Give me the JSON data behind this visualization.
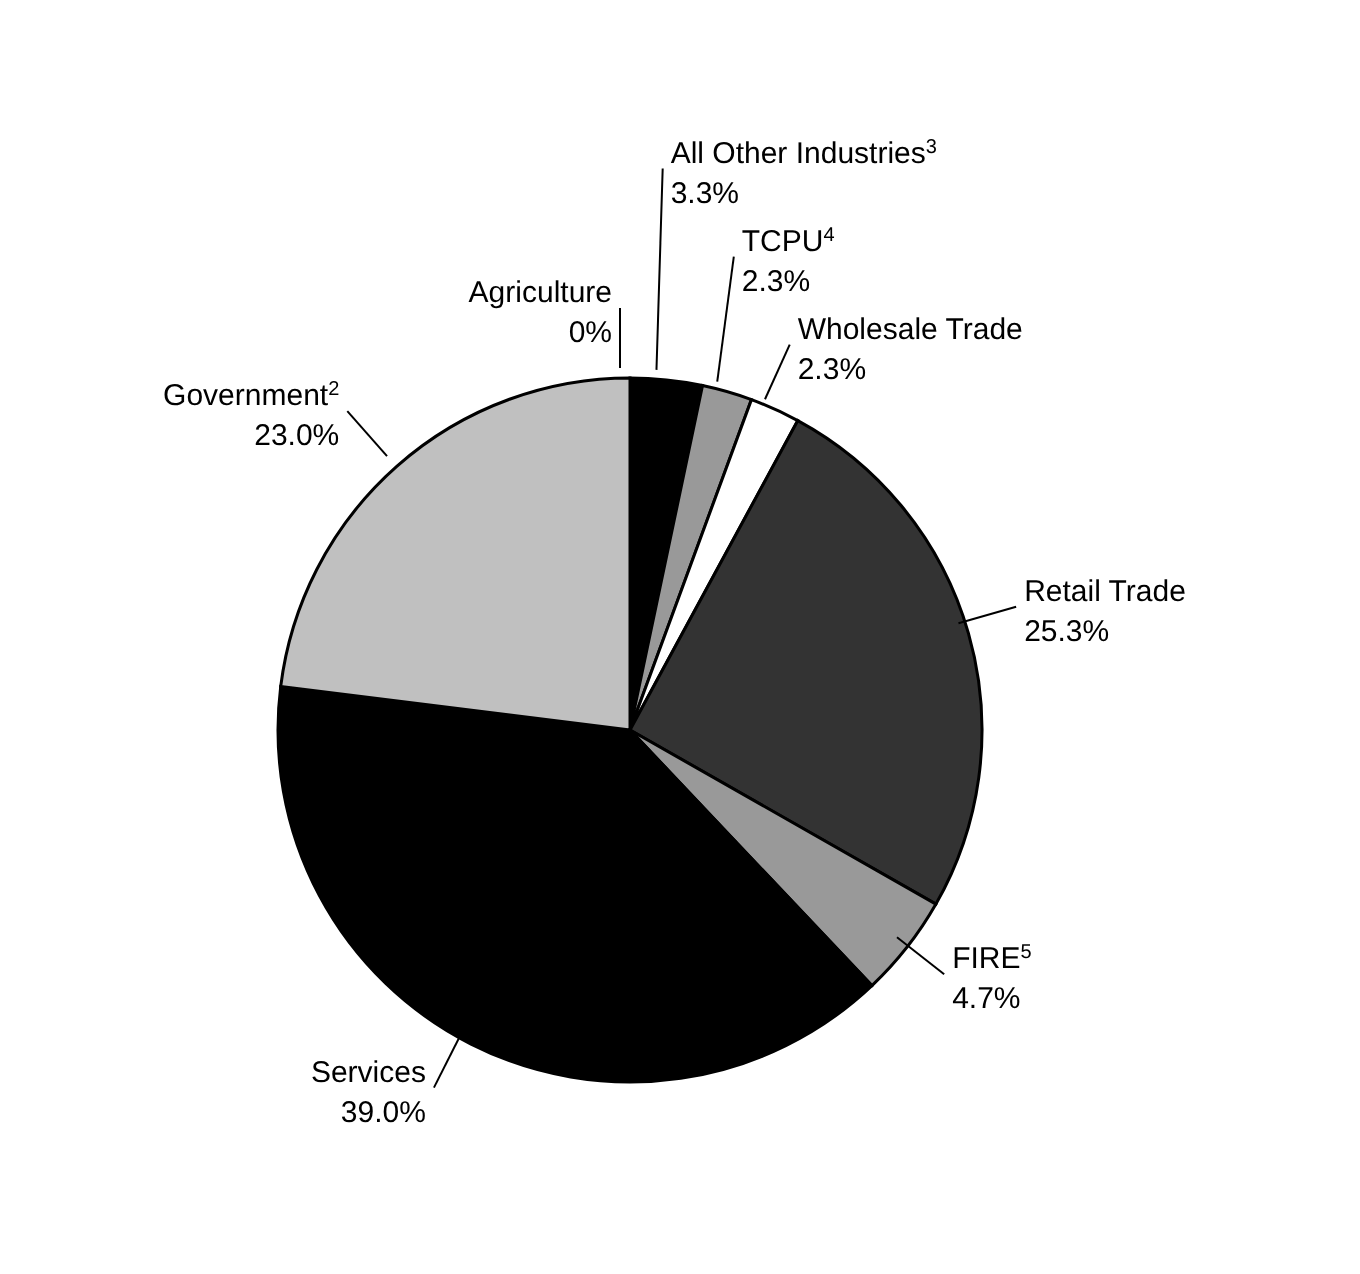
{
  "chart_data": {
    "type": "pie",
    "categories": [
      "Agriculture",
      "All Other Industries$^{3}$",
      "TCPU$^{4}$",
      "Wholesale Trade",
      "Retail Trade",
      "FIRE$^{5}$",
      "Services",
      "Government$^{2}$"
    ],
    "values": [
      0,
      3.3,
      2.3,
      2.3,
      25.3,
      4.7,
      39.0,
      23.0
    ],
    "value_labels": [
      "0%",
      "3.3%",
      "2.3%",
      "2.3%",
      "25.3%",
      "4.7%",
      "39.0%",
      "23.0%"
    ],
    "colors": [
      "#000000",
      "#000000",
      "#999999",
      "#ffffff",
      "#333333",
      "#999999",
      "#000000",
      "#c0c0c0"
    ],
    "legend": false
  }
}
